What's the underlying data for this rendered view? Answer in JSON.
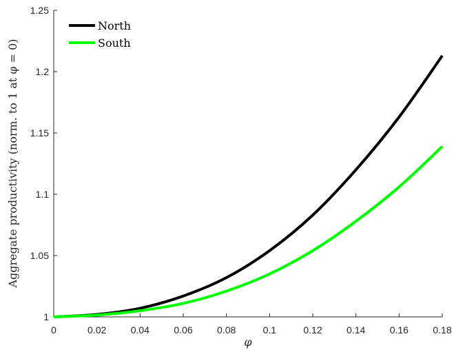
{
  "chart_data": {
    "type": "line",
    "title": "",
    "xlabel": "φ",
    "ylabel": "Aggregate productivity (norm. to 1 at φ = 0)",
    "xlim": [
      0,
      0.18
    ],
    "ylim": [
      1,
      1.25
    ],
    "xticks": [
      0,
      0.02,
      0.04,
      0.06,
      0.08,
      0.1,
      0.12,
      0.14,
      0.16,
      0.18
    ],
    "xtick_labels": [
      "0",
      "0.02",
      "0.04",
      "0.06",
      "0.08",
      "0.1",
      "0.12",
      "0.14",
      "0.16",
      "0.18"
    ],
    "yticks": [
      1,
      1.05,
      1.1,
      1.15,
      1.2,
      1.25
    ],
    "ytick_labels": [
      "1",
      "1.05",
      "1.1",
      "1.15",
      "1.2",
      "1.25"
    ],
    "grid": false,
    "legend": "top-left",
    "x": [
      0,
      0.02,
      0.04,
      0.06,
      0.08,
      0.1,
      0.12,
      0.14,
      0.16,
      0.18
    ],
    "series": [
      {
        "name": "North",
        "color": "#000000",
        "values": [
          1.0,
          1.002,
          1.007,
          1.017,
          1.032,
          1.054,
          1.083,
          1.12,
          1.163,
          1.213
        ]
      },
      {
        "name": "South",
        "color": "#00ff00",
        "values": [
          1.0,
          1.0015,
          1.005,
          1.011,
          1.021,
          1.035,
          1.054,
          1.078,
          1.106,
          1.139
        ]
      }
    ]
  }
}
